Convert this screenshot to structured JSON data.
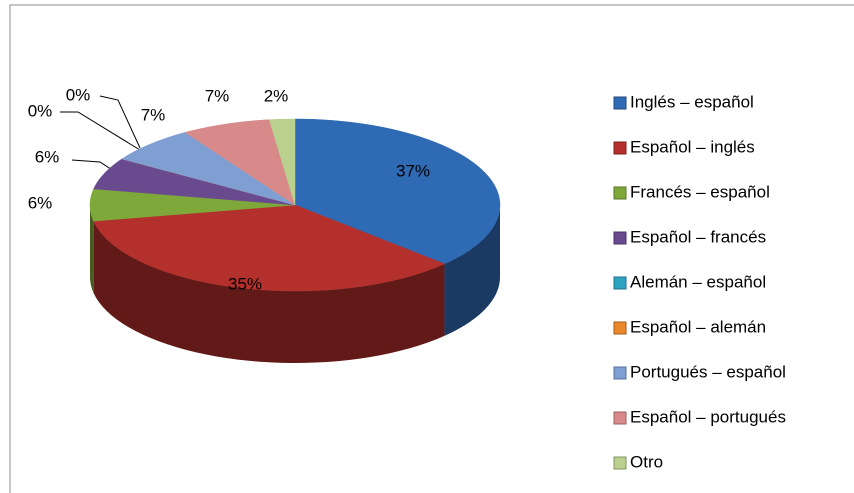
{
  "chart_data": {
    "type": "pie",
    "categories": [
      "Inglés – español",
      "Español – inglés",
      "Francés – español",
      "Español – francés",
      "Alemán – español",
      "Español – alemán",
      "Portugués – español",
      "Español – portugués",
      "Otro"
    ],
    "values": [
      37,
      35,
      6,
      6,
      0,
      0,
      7,
      7,
      2
    ],
    "value_labels": [
      "37%",
      "35%",
      "6%",
      "6%",
      "0%",
      "0%",
      "7%",
      "7%",
      "2%"
    ],
    "colors": [
      "#2f6ab4",
      "#b3302c",
      "#7fa83a",
      "#6a4a8f",
      "#2ea3c2",
      "#e9882b",
      "#7f9fd3",
      "#d88a8a",
      "#b9d08f"
    ],
    "legend": "right"
  }
}
